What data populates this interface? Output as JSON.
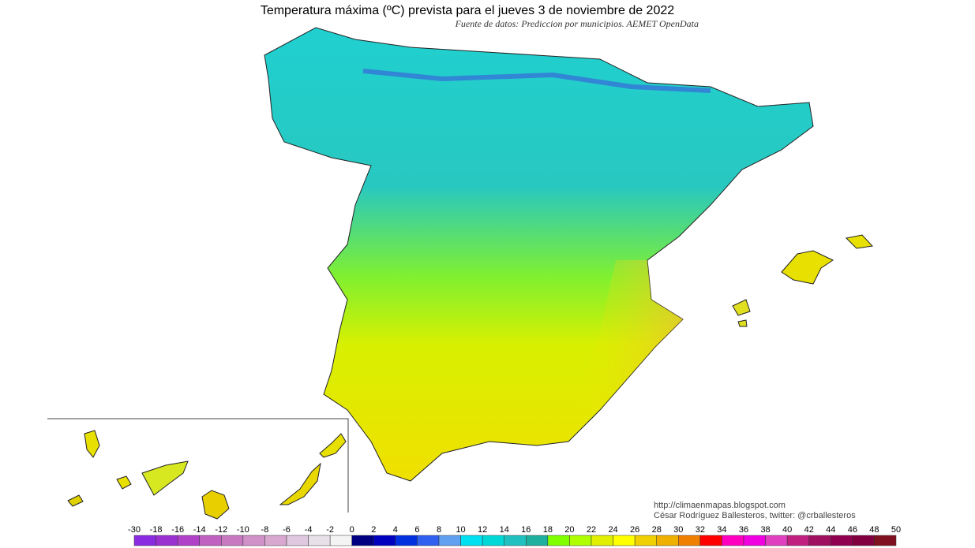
{
  "title": "Temperatura máxima (ºC) prevista para el jueves 3 de noviembre de 2022",
  "subtitle": "Fuente de datos: Prediccion por municipios. AEMET OpenData",
  "credits": [
    "http://climaenmapas.blogspot.com",
    "César Rodríguez Ballesteros, twitter: @crballesteros"
  ],
  "legend": {
    "ticks": [
      -30,
      -18,
      -16,
      -14,
      -12,
      -10,
      -8,
      -6,
      -4,
      -2,
      0,
      2,
      4,
      6,
      8,
      10,
      12,
      14,
      16,
      18,
      20,
      22,
      24,
      26,
      28,
      30,
      32,
      34,
      36,
      38,
      40,
      42,
      44,
      46,
      48,
      50
    ],
    "colors": [
      "#8a2be2",
      "#9b30d0",
      "#b040c8",
      "#c060c0",
      "#c878c0",
      "#d090c8",
      "#d8a8d0",
      "#e0c8e0",
      "#e8e0e8",
      "#f4f4f4",
      "#000080",
      "#0000c0",
      "#0030e0",
      "#3060f0",
      "#60a0f0",
      "#00e0f0",
      "#00d8d8",
      "#20c0c0",
      "#20b0a0",
      "#80ff00",
      "#b0ff00",
      "#e0f000",
      "#ffff00",
      "#f0d000",
      "#f0b000",
      "#f08000",
      "#ff0000",
      "#ff00c0",
      "#f000e0",
      "#e040c0",
      "#c02080",
      "#a01060",
      "#900050",
      "#800040",
      "#801020"
    ]
  }
}
